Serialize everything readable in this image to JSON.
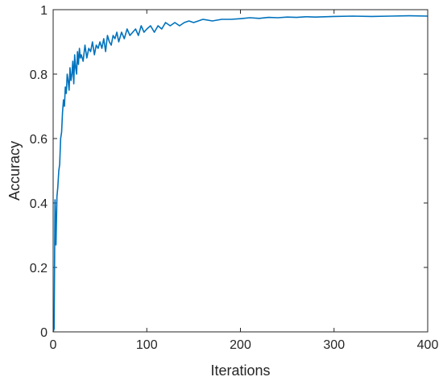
{
  "chart_data": {
    "type": "line",
    "title": "",
    "xlabel": "Iterations",
    "ylabel": "Accuracy",
    "xlim": [
      0,
      400
    ],
    "ylim": [
      0,
      1
    ],
    "xticks": [
      0,
      100,
      200,
      300,
      400
    ],
    "yticks": [
      0,
      0.2,
      0.4,
      0.6,
      0.8,
      1
    ],
    "xtick_labels": [
      "0",
      "100",
      "200",
      "300",
      "400"
    ],
    "ytick_labels": [
      "0",
      "0.2",
      "0.4",
      "0.6",
      "0.8",
      "1"
    ],
    "grid": false,
    "box": true,
    "series": [
      {
        "color": "#0072BD",
        "x": [
          0,
          1,
          2,
          3,
          4,
          5,
          6,
          7,
          8,
          9,
          10,
          11,
          12,
          13,
          14,
          15,
          16,
          17,
          18,
          19,
          20,
          21,
          22,
          23,
          24,
          25,
          26,
          27,
          28,
          29,
          30,
          32,
          34,
          36,
          38,
          40,
          42,
          44,
          46,
          48,
          50,
          52,
          54,
          56,
          58,
          60,
          62,
          64,
          66,
          68,
          70,
          73,
          76,
          79,
          82,
          85,
          88,
          91,
          94,
          97,
          100,
          104,
          108,
          112,
          116,
          120,
          125,
          130,
          135,
          140,
          145,
          150,
          160,
          170,
          180,
          190,
          200,
          210,
          220,
          230,
          240,
          250,
          260,
          270,
          280,
          290,
          300,
          320,
          340,
          360,
          380,
          400
        ],
        "y": [
          0.0,
          0.01,
          0.41,
          0.27,
          0.42,
          0.45,
          0.5,
          0.52,
          0.6,
          0.62,
          0.68,
          0.72,
          0.7,
          0.76,
          0.74,
          0.8,
          0.78,
          0.75,
          0.82,
          0.78,
          0.8,
          0.84,
          0.77,
          0.86,
          0.82,
          0.8,
          0.87,
          0.83,
          0.88,
          0.85,
          0.86,
          0.84,
          0.89,
          0.85,
          0.88,
          0.87,
          0.9,
          0.86,
          0.89,
          0.88,
          0.9,
          0.88,
          0.91,
          0.87,
          0.92,
          0.9,
          0.89,
          0.92,
          0.91,
          0.93,
          0.9,
          0.93,
          0.91,
          0.94,
          0.92,
          0.93,
          0.94,
          0.92,
          0.95,
          0.93,
          0.94,
          0.95,
          0.93,
          0.95,
          0.94,
          0.96,
          0.95,
          0.96,
          0.95,
          0.96,
          0.965,
          0.96,
          0.97,
          0.965,
          0.97,
          0.97,
          0.972,
          0.975,
          0.973,
          0.976,
          0.975,
          0.977,
          0.976,
          0.978,
          0.977,
          0.978,
          0.979,
          0.98,
          0.979,
          0.98,
          0.981,
          0.98
        ]
      }
    ]
  }
}
